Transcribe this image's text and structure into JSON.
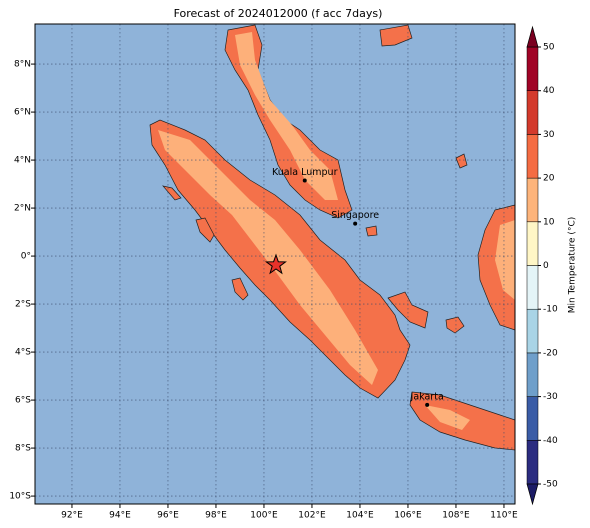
{
  "chart_data": {
    "type": "map",
    "title": "Forecast of 2024012000 (f acc 7days)",
    "xlim": [
      90.46,
      110.46
    ],
    "ylim": [
      -10.33,
      9.67
    ],
    "xticks": [
      {
        "value": 92,
        "label": "92°E"
      },
      {
        "value": 94,
        "label": "94°E"
      },
      {
        "value": 96,
        "label": "96°E"
      },
      {
        "value": 98,
        "label": "98°E"
      },
      {
        "value": 100,
        "label": "100°E"
      },
      {
        "value": 102,
        "label": "102°E"
      },
      {
        "value": 104,
        "label": "104°E"
      },
      {
        "value": 106,
        "label": "106°E"
      },
      {
        "value": 108,
        "label": "108°E"
      },
      {
        "value": 110,
        "label": "110°E"
      }
    ],
    "yticks": [
      {
        "value": -10,
        "label": "10°S"
      },
      {
        "value": -8,
        "label": "8°S"
      },
      {
        "value": -6,
        "label": "6°S"
      },
      {
        "value": -4,
        "label": "4°S"
      },
      {
        "value": -2,
        "label": "2°S"
      },
      {
        "value": 0,
        "label": "0°"
      },
      {
        "value": 2,
        "label": "2°N"
      },
      {
        "value": 4,
        "label": "4°N"
      },
      {
        "value": 6,
        "label": "6°N"
      },
      {
        "value": 8,
        "label": "8°N"
      }
    ],
    "grid": true,
    "cities": [
      {
        "name": "Kuala Lumpur",
        "lon": 101.7,
        "lat": 3.15
      },
      {
        "name": "Singapore",
        "lon": 103.8,
        "lat": 1.35
      },
      {
        "name": "Jakarta",
        "lon": 106.8,
        "lat": -6.2
      }
    ],
    "marker": {
      "lon": 100.5,
      "lat": -0.37,
      "color": "#e8322a"
    },
    "colorbar": {
      "label": "Min Temperature (°C)",
      "lim": [
        -50,
        50
      ],
      "ticks": [
        -50,
        -40,
        -30,
        -20,
        -10,
        0,
        10,
        20,
        30,
        40,
        50
      ],
      "colors": [
        "#2b2c80",
        "#3a5ca6",
        "#6f9fca",
        "#a9d4e6",
        "#e4f4f7",
        "#fff6c6",
        "#fdb47b",
        "#f46c43",
        "#d33a2c",
        "#a00326"
      ],
      "extend_colors": [
        "#1c1c66",
        "#7a0020"
      ]
    }
  }
}
